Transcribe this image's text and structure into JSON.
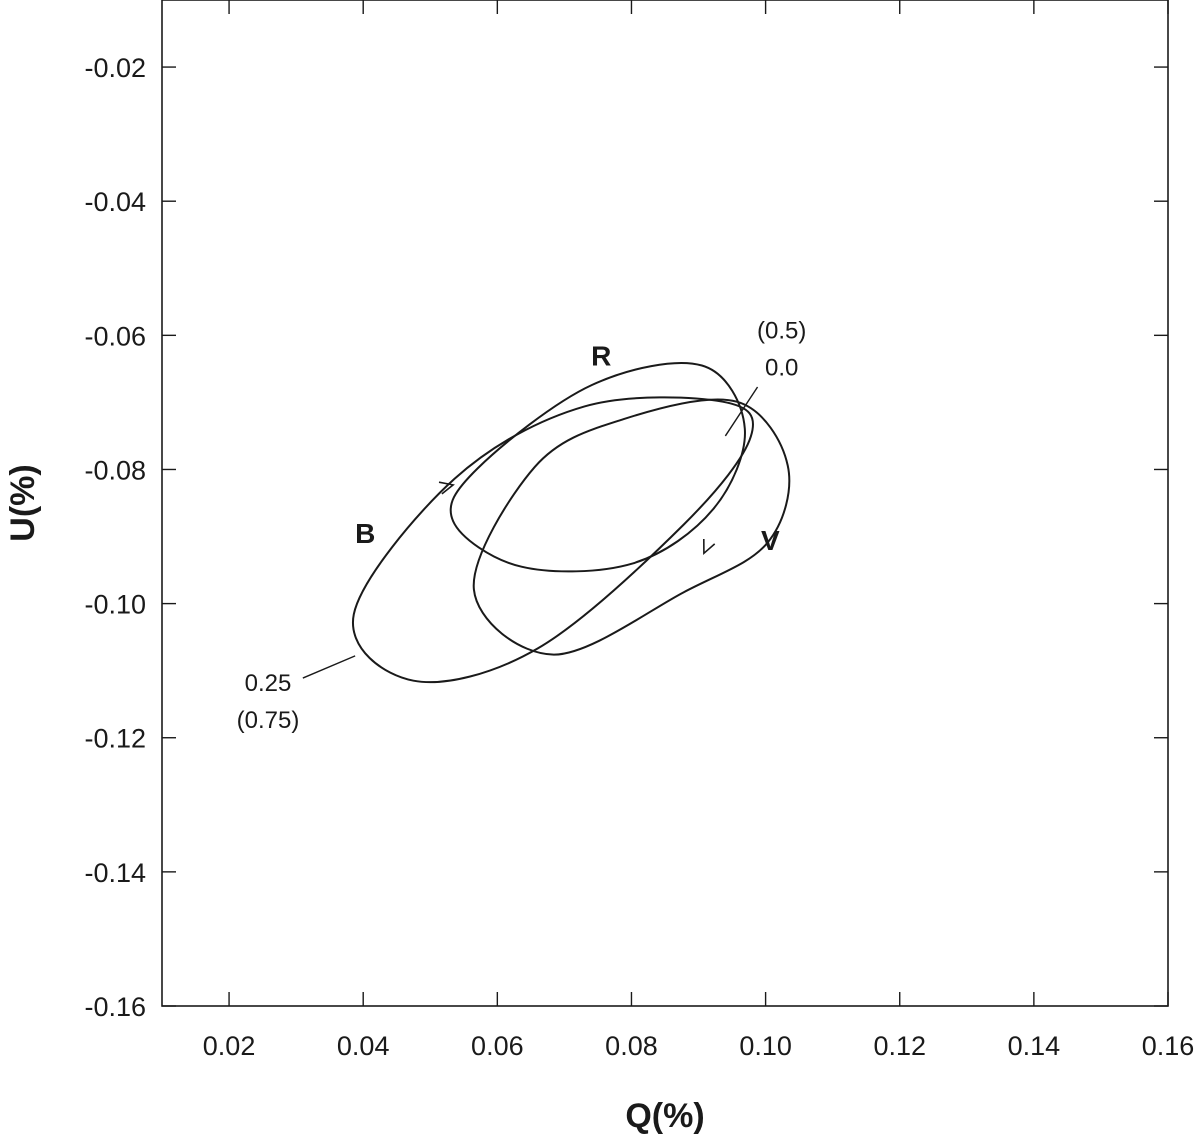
{
  "chart_data": {
    "type": "line",
    "title": "",
    "xlabel": "Q(%)",
    "ylabel": "U(%)",
    "xlim": [
      0.01,
      0.16
    ],
    "ylim": [
      -0.16,
      -0.01
    ],
    "x_ticks": [
      {
        "value": 0.02,
        "label": "0.02"
      },
      {
        "value": 0.04,
        "label": "0.04"
      },
      {
        "value": 0.06,
        "label": "0.06"
      },
      {
        "value": 0.08,
        "label": "0.08"
      },
      {
        "value": 0.1,
        "label": "0.10"
      },
      {
        "value": 0.12,
        "label": "0.12"
      },
      {
        "value": 0.14,
        "label": "0.14"
      },
      {
        "value": 0.16,
        "label": "0.16"
      }
    ],
    "y_ticks": [
      {
        "value": -0.02,
        "label": "-0.02"
      },
      {
        "value": -0.04,
        "label": "-0.04"
      },
      {
        "value": -0.06,
        "label": "-0.06"
      },
      {
        "value": -0.08,
        "label": "-0.08"
      },
      {
        "value": -0.1,
        "label": "-0.10"
      },
      {
        "value": -0.12,
        "label": "-0.12"
      },
      {
        "value": -0.14,
        "label": "-0.14"
      },
      {
        "value": -0.16,
        "label": "-0.16"
      }
    ],
    "grid": false,
    "line_color": "#1a1a1a",
    "series": [
      {
        "name": "R",
        "x": [
          0.0571,
          0.0741,
          0.0905,
          0.0969,
          0.0922,
          0.0802,
          0.0636,
          0.0534,
          0.0571
        ],
        "y": [
          -0.0798,
          -0.0674,
          -0.0645,
          -0.0739,
          -0.0859,
          -0.094,
          -0.0945,
          -0.0877,
          -0.0798
        ]
      },
      {
        "name": "V",
        "x": [
          0.0656,
          0.0788,
          0.0957,
          0.1033,
          0.1003,
          0.0878,
          0.0684,
          0.0565,
          0.0656
        ],
        "y": [
          -0.0796,
          -0.0725,
          -0.0699,
          -0.0794,
          -0.0909,
          -0.0983,
          -0.1076,
          -0.0979,
          -0.0796
        ]
      },
      {
        "name": "B",
        "x": [
          0.0536,
          0.073,
          0.0936,
          0.0978,
          0.0878,
          0.066,
          0.0475,
          0.0386,
          0.0536
        ],
        "y": [
          -0.0814,
          -0.0706,
          -0.0699,
          -0.0751,
          -0.0882,
          -0.1067,
          -0.1115,
          -0.1016,
          -0.0814
        ]
      }
    ],
    "labels": {
      "R": {
        "text": "R",
        "x": 0.0755,
        "y": -0.0645
      },
      "V": {
        "text": "V",
        "x": 0.1007,
        "y": -0.092
      },
      "B": {
        "text": "B",
        "x": 0.0403,
        "y": -0.091
      }
    },
    "annotations": [
      {
        "lines": [
          "(0.5)",
          "0.0"
        ],
        "x": 0.1024,
        "y": -0.0605,
        "leader": [
          [
            0.0988,
            -0.0677
          ],
          [
            0.094,
            -0.075
          ]
        ]
      },
      {
        "lines": [
          "0.25",
          "(0.75)"
        ],
        "x": 0.0258,
        "y": -0.113,
        "leader": [
          [
            0.031,
            -0.1111
          ],
          [
            0.0388,
            -0.1078
          ]
        ]
      }
    ],
    "direction_arrows": [
      {
        "x": 0.0534,
        "y": -0.0823,
        "dx": 1,
        "dy": 0.25
      },
      {
        "x": 0.0908,
        "y": -0.0925,
        "dx": -0.45,
        "dy": -1
      }
    ]
  }
}
